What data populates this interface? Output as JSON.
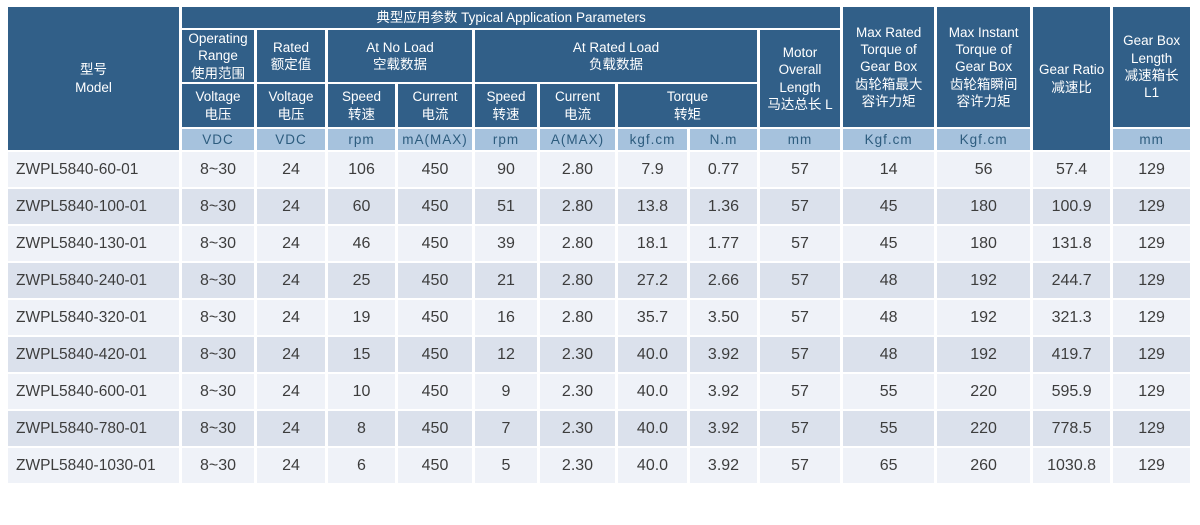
{
  "colors": {
    "header_bg": "#315f88",
    "unit_bg": "#a6c2dd",
    "unit_text": "#2d5c7e",
    "row_light": "#eff2f8",
    "row_dark": "#dbe1ec",
    "data_text": "#3d3d3d"
  },
  "header": {
    "model": "型号\nModel",
    "top_band": "典型应用参数  Typical Application Parameters",
    "operating_range": "Operating\nRange\n使用范围",
    "rated": "Rated\n额定值",
    "at_no_load": "At No Load\n空载数据",
    "at_rated_load": "At Rated Load\n负载数据",
    "motor_overall_length": "Motor\nOverall\nLength\n马达总长 L",
    "max_rated_torque": "Max Rated\nTorque of\nGear Box\n齿轮箱最大\n容许力矩",
    "max_instant_torque": "Max Instant\nTorque of\nGear Box\n齿轮箱瞬间\n容许力矩",
    "gear_ratio": "Gear Ratio\n减速比",
    "gear_box_length": "Gear Box\nLength\n减速箱长\nL1",
    "voltage": "Voltage\n电压",
    "speed": "Speed\n转速",
    "current": "Current\n电流",
    "torque": "Torque\n转矩",
    "units": {
      "vdc": "VDC",
      "rpm": "rpm",
      "ma_max": "mA(MAX)",
      "a_max": "A(MAX)",
      "kgf_cm": "kgf.cm",
      "n_m": "N.m",
      "mm": "mm",
      "Kgf_cm": "Kgf.cm"
    }
  },
  "rows": [
    {
      "model": "ZWPL5840-60-01",
      "operating_range": "8~30",
      "rated_voltage": "24",
      "no_load_speed": "106",
      "no_load_current": "450",
      "rated_speed": "90",
      "rated_current": "2.80",
      "torque_kgf": "7.9",
      "torque_nm": "0.77",
      "motor_length": "57",
      "max_rated_torque": "14",
      "max_instant_torque": "56",
      "gear_ratio": "57.4",
      "gear_box_length": "129"
    },
    {
      "model": "ZWPL5840-100-01",
      "operating_range": "8~30",
      "rated_voltage": "24",
      "no_load_speed": "60",
      "no_load_current": "450",
      "rated_speed": "51",
      "rated_current": "2.80",
      "torque_kgf": "13.8",
      "torque_nm": "1.36",
      "motor_length": "57",
      "max_rated_torque": "45",
      "max_instant_torque": "180",
      "gear_ratio": "100.9",
      "gear_box_length": "129"
    },
    {
      "model": "ZWPL5840-130-01",
      "operating_range": "8~30",
      "rated_voltage": "24",
      "no_load_speed": "46",
      "no_load_current": "450",
      "rated_speed": "39",
      "rated_current": "2.80",
      "torque_kgf": "18.1",
      "torque_nm": "1.77",
      "motor_length": "57",
      "max_rated_torque": "45",
      "max_instant_torque": "180",
      "gear_ratio": "131.8",
      "gear_box_length": "129"
    },
    {
      "model": "ZWPL5840-240-01",
      "operating_range": "8~30",
      "rated_voltage": "24",
      "no_load_speed": "25",
      "no_load_current": "450",
      "rated_speed": "21",
      "rated_current": "2.80",
      "torque_kgf": "27.2",
      "torque_nm": "2.66",
      "motor_length": "57",
      "max_rated_torque": "48",
      "max_instant_torque": "192",
      "gear_ratio": "244.7",
      "gear_box_length": "129"
    },
    {
      "model": "ZWPL5840-320-01",
      "operating_range": "8~30",
      "rated_voltage": "24",
      "no_load_speed": "19",
      "no_load_current": "450",
      "rated_speed": "16",
      "rated_current": "2.80",
      "torque_kgf": "35.7",
      "torque_nm": "3.50",
      "motor_length": "57",
      "max_rated_torque": "48",
      "max_instant_torque": "192",
      "gear_ratio": "321.3",
      "gear_box_length": "129"
    },
    {
      "model": "ZWPL5840-420-01",
      "operating_range": "8~30",
      "rated_voltage": "24",
      "no_load_speed": "15",
      "no_load_current": "450",
      "rated_speed": "12",
      "rated_current": "2.30",
      "torque_kgf": "40.0",
      "torque_nm": "3.92",
      "motor_length": "57",
      "max_rated_torque": "48",
      "max_instant_torque": "192",
      "gear_ratio": "419.7",
      "gear_box_length": "129"
    },
    {
      "model": "ZWPL5840-600-01",
      "operating_range": "8~30",
      "rated_voltage": "24",
      "no_load_speed": "10",
      "no_load_current": "450",
      "rated_speed": "9",
      "rated_current": "2.30",
      "torque_kgf": "40.0",
      "torque_nm": "3.92",
      "motor_length": "57",
      "max_rated_torque": "55",
      "max_instant_torque": "220",
      "gear_ratio": "595.9",
      "gear_box_length": "129"
    },
    {
      "model": "ZWPL5840-780-01",
      "operating_range": "8~30",
      "rated_voltage": "24",
      "no_load_speed": "8",
      "no_load_current": "450",
      "rated_speed": "7",
      "rated_current": "2.30",
      "torque_kgf": "40.0",
      "torque_nm": "3.92",
      "motor_length": "57",
      "max_rated_torque": "55",
      "max_instant_torque": "220",
      "gear_ratio": "778.5",
      "gear_box_length": "129"
    },
    {
      "model": "ZWPL5840-1030-01",
      "operating_range": "8~30",
      "rated_voltage": "24",
      "no_load_speed": "6",
      "no_load_current": "450",
      "rated_speed": "5",
      "rated_current": "2.30",
      "torque_kgf": "40.0",
      "torque_nm": "3.92",
      "motor_length": "57",
      "max_rated_torque": "65",
      "max_instant_torque": "260",
      "gear_ratio": "1030.8",
      "gear_box_length": "129"
    }
  ]
}
